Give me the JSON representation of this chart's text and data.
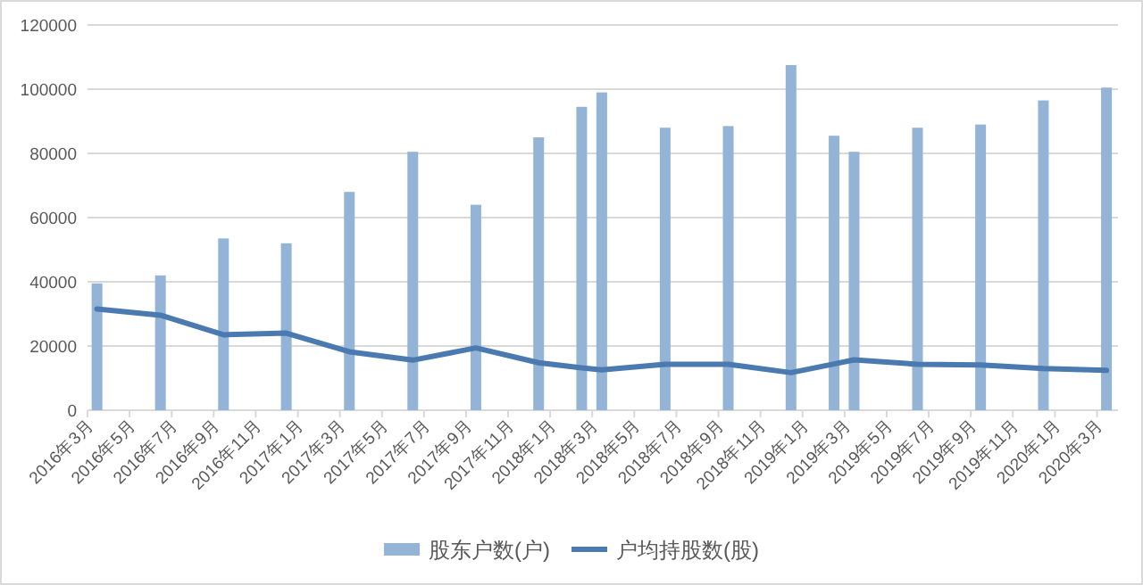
{
  "chart_data": {
    "type": "bar",
    "x": [
      "2016-03-15",
      "2016-06-15",
      "2016-09-15",
      "2016-12-15",
      "2017-03-15",
      "2017-06-15",
      "2017-09-15",
      "2017-12-15",
      "2018-02-15",
      "2018-03-15",
      "2018-06-15",
      "2018-09-15",
      "2018-12-15",
      "2019-02-15",
      "2019-03-15",
      "2019-06-15",
      "2019-09-15",
      "2019-12-15",
      "2020-03-15"
    ],
    "series": [
      {
        "name": "股东户数(户)",
        "color": "#93b3d7",
        "values": [
          39500,
          42000,
          53500,
          52000,
          68000,
          80500,
          64000,
          85000,
          94500,
          99000,
          88000,
          88500,
          107500,
          85500,
          80500,
          88000,
          89000,
          96500,
          100500
        ]
      },
      {
        "name": "户均持股数(股)",
        "type": "line",
        "color": "#4a7ab0",
        "values": [
          31500,
          29600,
          23500,
          24000,
          18200,
          15600,
          19400,
          14800,
          13200,
          12600,
          14300,
          14300,
          11700,
          14400,
          15700,
          14300,
          14100,
          13000,
          12400
        ]
      }
    ],
    "xlim": [
      "2016-03",
      "2020-04"
    ],
    "xticks": [
      {
        "value": "2016-03",
        "label": "2016年3月"
      },
      {
        "value": "2016-05",
        "label": "2016年5月"
      },
      {
        "value": "2016-07",
        "label": "2016年7月"
      },
      {
        "value": "2016-09",
        "label": "2016年9月"
      },
      {
        "value": "2016-11",
        "label": "2016年11月"
      },
      {
        "value": "2017-01",
        "label": "2017年1月"
      },
      {
        "value": "2017-03",
        "label": "2017年3月"
      },
      {
        "value": "2017-05",
        "label": "2017年5月"
      },
      {
        "value": "2017-07",
        "label": "2017年7月"
      },
      {
        "value": "2017-09",
        "label": "2017年9月"
      },
      {
        "value": "2017-11",
        "label": "2017年11月"
      },
      {
        "value": "2018-01",
        "label": "2018年1月"
      },
      {
        "value": "2018-03",
        "label": "2018年3月"
      },
      {
        "value": "2018-05",
        "label": "2018年5月"
      },
      {
        "value": "2018-07",
        "label": "2018年7月"
      },
      {
        "value": "2018-09",
        "label": "2018年9月"
      },
      {
        "value": "2018-11",
        "label": "2018年11月"
      },
      {
        "value": "2019-01",
        "label": "2019年1月"
      },
      {
        "value": "2019-03",
        "label": "2019年3月"
      },
      {
        "value": "2019-05",
        "label": "2019年5月"
      },
      {
        "value": "2019-07",
        "label": "2019年7月"
      },
      {
        "value": "2019-09",
        "label": "2019年9月"
      },
      {
        "value": "2019-11",
        "label": "2019年11月"
      },
      {
        "value": "2020-01",
        "label": "2020年1月"
      },
      {
        "value": "2020-03",
        "label": "2020年3月"
      }
    ],
    "ylim": [
      0,
      120000
    ],
    "yticks": [
      0,
      20000,
      40000,
      60000,
      80000,
      100000,
      120000
    ],
    "grid": "y",
    "legend": "bottom"
  }
}
